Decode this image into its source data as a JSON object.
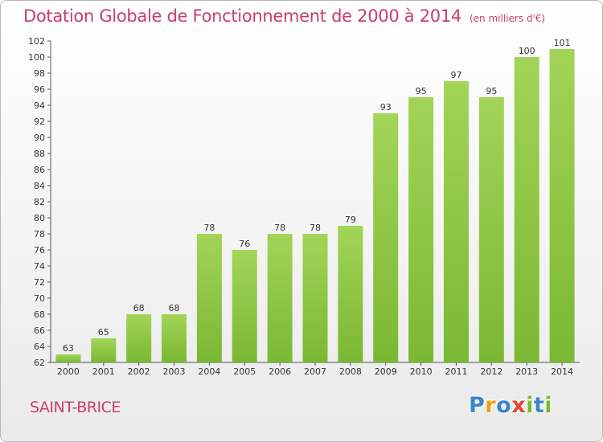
{
  "chart_data": {
    "type": "bar",
    "title": "Dotation Globale de Fonctionnement de 2000 à 2014",
    "subtitle": "(en milliers d'€)",
    "categories": [
      "2000",
      "2001",
      "2002",
      "2003",
      "2004",
      "2005",
      "2006",
      "2007",
      "2008",
      "2009",
      "2010",
      "2011",
      "2012",
      "2013",
      "2014"
    ],
    "values": [
      63,
      65,
      68,
      68,
      78,
      76,
      78,
      78,
      79,
      93,
      95,
      97,
      95,
      100,
      101
    ],
    "xlabel": "",
    "ylabel": "",
    "ylim": [
      62,
      102
    ],
    "y_ticks": [
      62,
      64,
      66,
      68,
      70,
      72,
      74,
      76,
      78,
      80,
      82,
      84,
      86,
      88,
      90,
      92,
      94,
      96,
      98,
      100,
      102
    ],
    "bar_color": "#7ab833",
    "bar_color_light": "#a2d458",
    "grid": false
  },
  "footer": {
    "commune": "SAINT-BRICE",
    "brand_letters": [
      {
        "char": "P",
        "color": "#3a86c8"
      },
      {
        "char": "r",
        "color": "#f39c12"
      },
      {
        "char": "o",
        "color": "#3a86c8"
      },
      {
        "char": "x",
        "color": "#e8442e"
      },
      {
        "char": "i",
        "color": "#7ab833"
      },
      {
        "char": "t",
        "color": "#3a86c8"
      },
      {
        "char": "i",
        "color": "#7ab833"
      }
    ]
  },
  "colors": {
    "title": "#c83d6e",
    "text": "#333333"
  }
}
